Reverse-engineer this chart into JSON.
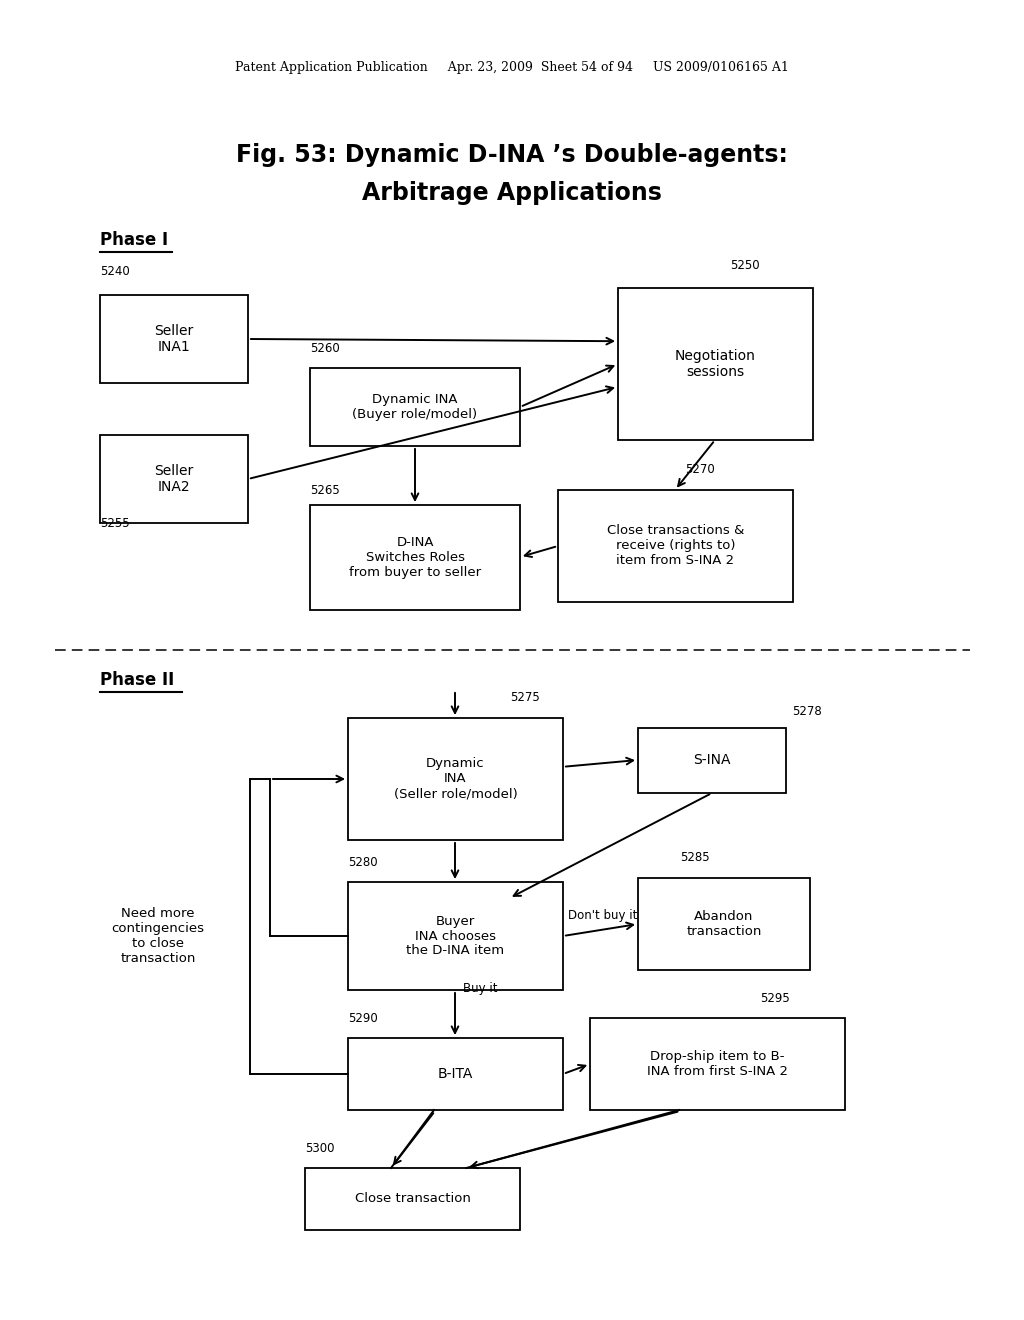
{
  "bg_color": "#ffffff",
  "header_text": "Patent Application Publication     Apr. 23, 2009  Sheet 54 of 94     US 2009/0106165 A1",
  "title_line1": "Fig. 53: Dynamic D-INA ’s Double-agents:",
  "title_line2": "Arbitrage Applications",
  "phase1_label": "Phase I",
  "phase2_label": "Phase II",
  "text_color": "#000000",
  "box_edge_color": "#000000",
  "box_fill_color": "#ffffff",
  "arrow_color": "#000000"
}
